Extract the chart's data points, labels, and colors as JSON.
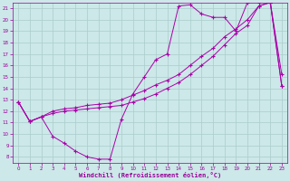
{
  "background_color": "#cce8e8",
  "grid_color": "#aacccc",
  "line_color": "#aa00aa",
  "xlabel": "Windchill (Refroidissement éolien,°C)",
  "xlabel_color": "#990099",
  "tick_color": "#990099",
  "xlim": [
    -0.5,
    23.5
  ],
  "ylim": [
    7.5,
    21.5
  ],
  "yticks": [
    8,
    9,
    10,
    11,
    12,
    13,
    14,
    15,
    16,
    17,
    18,
    19,
    20,
    21
  ],
  "xticks": [
    0,
    1,
    2,
    3,
    4,
    5,
    6,
    7,
    8,
    9,
    10,
    11,
    12,
    13,
    14,
    15,
    16,
    17,
    18,
    19,
    20,
    21,
    22,
    23
  ],
  "curve1_x": [
    0,
    1,
    2,
    3,
    4,
    5,
    6,
    7,
    8,
    9,
    10,
    11,
    12,
    13,
    14,
    15,
    16,
    17,
    18,
    19,
    20,
    21,
    22,
    23
  ],
  "curve1_y": [
    12.8,
    11.1,
    11.5,
    9.8,
    9.2,
    8.5,
    8.0,
    7.8,
    7.8,
    11.3,
    13.5,
    15.0,
    16.5,
    17.0,
    21.2,
    21.3,
    20.5,
    20.2,
    20.2,
    19.0,
    21.5,
    21.5,
    21.5,
    15.2
  ],
  "curve2_x": [
    0,
    1,
    2,
    3,
    4,
    5,
    6,
    7,
    8,
    9,
    10,
    11,
    12,
    13,
    14,
    15,
    16,
    17,
    18,
    19,
    20,
    21,
    22,
    23
  ],
  "curve2_y": [
    12.8,
    11.1,
    11.5,
    12.0,
    12.2,
    12.3,
    12.5,
    12.6,
    12.7,
    13.0,
    13.4,
    13.8,
    14.3,
    14.7,
    15.2,
    16.0,
    16.8,
    17.5,
    18.5,
    19.2,
    20.0,
    21.2,
    21.5,
    14.2
  ],
  "curve3_x": [
    0,
    1,
    2,
    3,
    4,
    5,
    6,
    7,
    8,
    9,
    10,
    11,
    12,
    13,
    14,
    15,
    16,
    17,
    18,
    19,
    20,
    21,
    22,
    23
  ],
  "curve3_y": [
    12.8,
    11.1,
    11.5,
    11.8,
    12.0,
    12.1,
    12.2,
    12.3,
    12.4,
    12.5,
    12.8,
    13.1,
    13.5,
    14.0,
    14.5,
    15.2,
    16.0,
    16.8,
    17.8,
    18.8,
    19.5,
    21.2,
    21.5,
    14.2
  ]
}
